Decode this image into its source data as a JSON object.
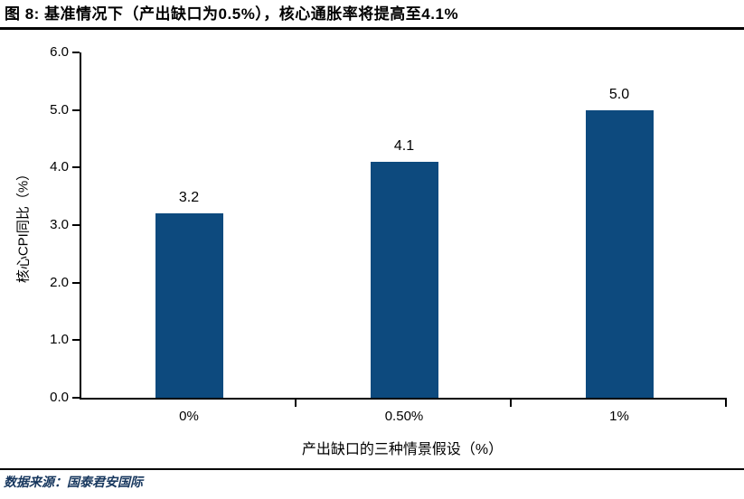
{
  "header": {
    "title": "图 8:  基准情况下（产出缺口为0.5%），核心通胀率将提高至4.1%"
  },
  "chart_data": {
    "type": "bar",
    "categories": [
      "0%",
      "0.50%",
      "1%"
    ],
    "values": [
      3.2,
      4.1,
      5.0
    ],
    "value_labels": [
      "3.2",
      "4.1",
      "5.0"
    ],
    "title": "图 8: 基准情况下（产出缺口为0.5%），核心通胀率将提高至4.1%",
    "xlabel": "产出缺口的三种情景假设（%）",
    "ylabel": "核心CPI同比（%）",
    "ylim": [
      0,
      6
    ],
    "yticks": [
      "0.0",
      "1.0",
      "2.0",
      "3.0",
      "4.0",
      "5.0",
      "6.0"
    ],
    "grid": false,
    "legend": "none",
    "bar_color": "#0d4a7e",
    "axis_color": "#000000",
    "label_color": "#000000"
  },
  "footer": {
    "source": "数据来源：国泰君安国际",
    "source_color": "#17375e"
  }
}
